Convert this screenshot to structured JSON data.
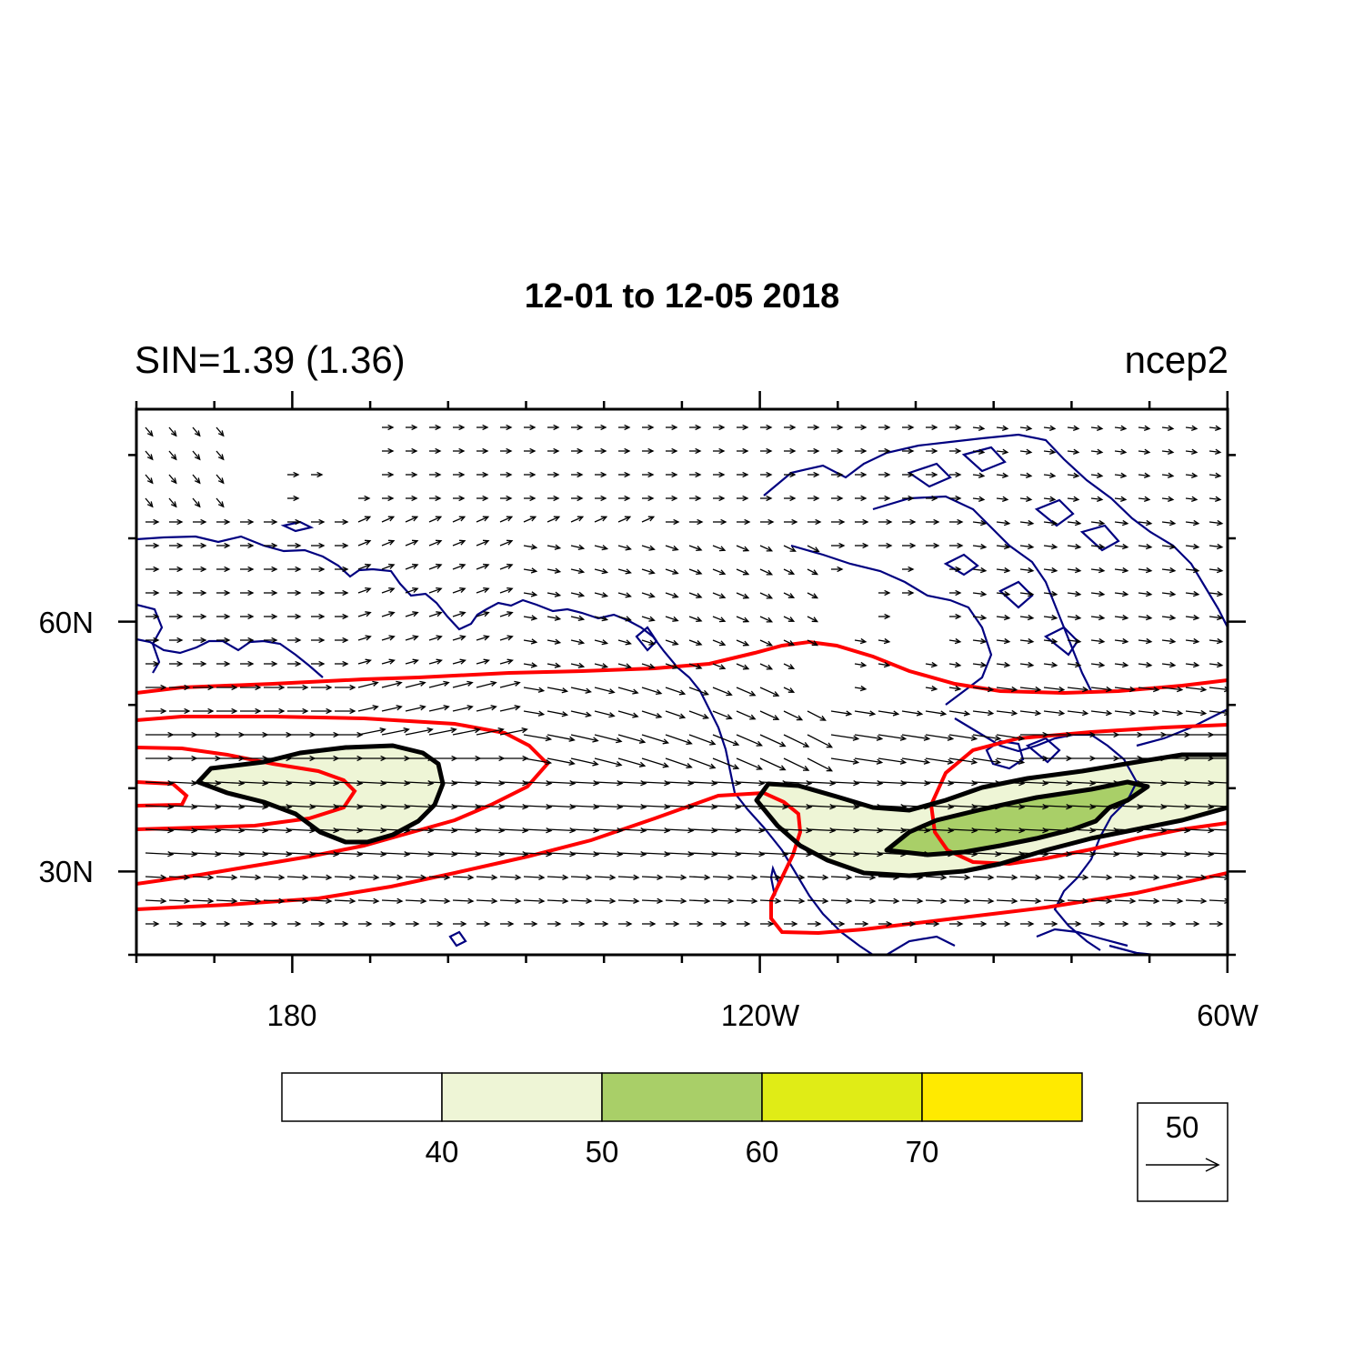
{
  "title": "12-01 to 12-05 2018",
  "left_string": "SIN=1.39 (1.36)",
  "right_string": "ncep2",
  "map": {
    "projection": "cylindrical equidistant",
    "lon_range": [
      160,
      300
    ],
    "lat_range": [
      20,
      85
    ],
    "x_ticks": [
      {
        "lon": 180,
        "label": "180"
      },
      {
        "lon": 240,
        "label": "120W"
      },
      {
        "lon": 300,
        "label": "60W"
      }
    ],
    "y_ticks": [
      {
        "lat": 30,
        "label": "30N"
      },
      {
        "lat": 60,
        "label": "60N"
      }
    ],
    "coastline_color": "#000080",
    "wind_vector_color": "#000000",
    "reference_vector": {
      "magnitude": 50,
      "label": "50"
    }
  },
  "colorbar": {
    "levels": [
      "40",
      "50",
      "60",
      "70"
    ],
    "colors": [
      "#ffffff",
      "#eef5d6",
      "#a9cf68",
      "#e0ec16",
      "#ffea00"
    ]
  },
  "contours": {
    "red_line_color": "#ff0000",
    "black_line_color": "#000000",
    "shaded_regions": [
      {
        "name": "pacific-jet-core",
        "min_speed": 40
      },
      {
        "name": "north-american-jet-core",
        "min_speed": 40
      },
      {
        "name": "north-american-jet-max",
        "min_speed": 50
      }
    ]
  }
}
